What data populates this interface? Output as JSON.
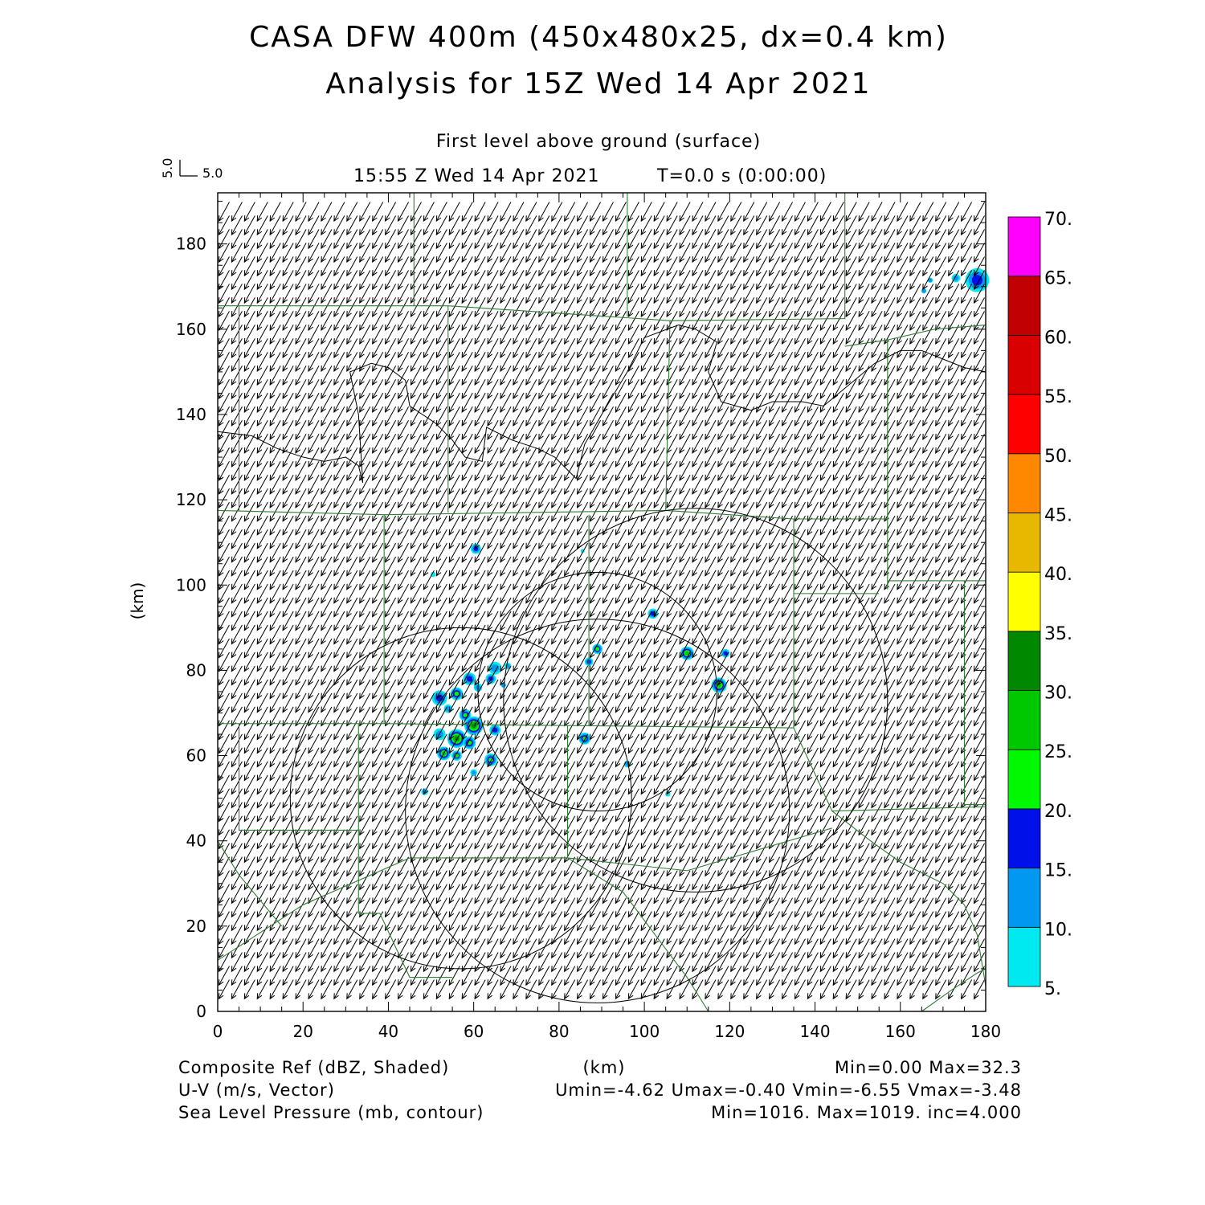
{
  "header": {
    "title_line1": "CASA DFW 400m (450x480x25, dx=0.4 km)",
    "title_line2": "Analysis for 15Z Wed 14 Apr 2021",
    "level": "First level above ground (surface)",
    "time": "15:55 Z Wed 14 Apr 2021",
    "tstep": "T=0.0 s (0:00:00)",
    "ref_vec_u": "5.0",
    "ref_vec_v": "5.0"
  },
  "chart_data": {
    "type": "heatmap",
    "xlabel": "(km)",
    "ylabel": "(km)",
    "xlim": [
      0,
      180
    ],
    "ylim": [
      0,
      192
    ],
    "xticks": [
      0,
      20,
      40,
      60,
      80,
      100,
      120,
      140,
      160,
      180
    ],
    "yticks": [
      0,
      20,
      40,
      60,
      80,
      100,
      120,
      140,
      160,
      180
    ],
    "colorbar": {
      "levels": [
        "5.",
        "10.",
        "15.",
        "20.",
        "25.",
        "30.",
        "35.",
        "40.",
        "45.",
        "50.",
        "55.",
        "60.",
        "65.",
        "70."
      ],
      "colors": [
        "#00e8f0",
        "#0098f0",
        "#0010e8",
        "#00f800",
        "#00c800",
        "#008800",
        "#ffff00",
        "#e8b800",
        "#ff8800",
        "#ff0000",
        "#d80000",
        "#c00000",
        "#ff00ff"
      ]
    },
    "wind": {
      "u": -3.2,
      "v": -5.8
    },
    "reflectivity_cells": [
      {
        "x": 60.5,
        "y": 108.5,
        "r": 1.2,
        "max": 15
      },
      {
        "x": 50.5,
        "y": 102.5,
        "r": 0.6,
        "max": 8
      },
      {
        "x": 85.5,
        "y": 108,
        "r": 0.4,
        "max": 8
      },
      {
        "x": 102,
        "y": 93.3,
        "r": 1.2,
        "max": 18
      },
      {
        "x": 89,
        "y": 85,
        "r": 1.2,
        "max": 22
      },
      {
        "x": 87,
        "y": 82,
        "r": 1.0,
        "max": 15
      },
      {
        "x": 110,
        "y": 84,
        "r": 1.6,
        "max": 25
      },
      {
        "x": 119,
        "y": 84,
        "r": 1.0,
        "max": 18
      },
      {
        "x": 117.5,
        "y": 76.5,
        "r": 1.8,
        "max": 25
      },
      {
        "x": 65,
        "y": 80.5,
        "r": 1.5,
        "max": 12
      },
      {
        "x": 68,
        "y": 81,
        "r": 0.8,
        "max": 10
      },
      {
        "x": 64,
        "y": 78,
        "r": 1.2,
        "max": 15
      },
      {
        "x": 59,
        "y": 78,
        "r": 1.5,
        "max": 15
      },
      {
        "x": 61,
        "y": 76,
        "r": 1.0,
        "max": 12
      },
      {
        "x": 67,
        "y": 76.5,
        "r": 0.6,
        "max": 10
      },
      {
        "x": 56,
        "y": 74.5,
        "r": 1.5,
        "max": 22
      },
      {
        "x": 52,
        "y": 73.5,
        "r": 1.8,
        "max": 15
      },
      {
        "x": 54,
        "y": 71,
        "r": 1.0,
        "max": 12
      },
      {
        "x": 58,
        "y": 69.5,
        "r": 1.4,
        "max": 20
      },
      {
        "x": 60,
        "y": 67,
        "r": 2.2,
        "max": 32
      },
      {
        "x": 56,
        "y": 64,
        "r": 2.2,
        "max": 30
      },
      {
        "x": 59,
        "y": 63,
        "r": 1.5,
        "max": 22
      },
      {
        "x": 52,
        "y": 65,
        "r": 1.4,
        "max": 12
      },
      {
        "x": 65,
        "y": 66,
        "r": 1.3,
        "max": 18
      },
      {
        "x": 53,
        "y": 60.5,
        "r": 1.6,
        "max": 25
      },
      {
        "x": 56,
        "y": 60,
        "r": 1.2,
        "max": 20
      },
      {
        "x": 64,
        "y": 59,
        "r": 1.5,
        "max": 22
      },
      {
        "x": 60,
        "y": 56,
        "r": 0.8,
        "max": 10
      },
      {
        "x": 86,
        "y": 64,
        "r": 1.4,
        "max": 22
      },
      {
        "x": 96,
        "y": 58,
        "r": 0.8,
        "max": 12
      },
      {
        "x": 48.5,
        "y": 51.5,
        "r": 0.8,
        "max": 10
      },
      {
        "x": 105.5,
        "y": 51,
        "r": 0.6,
        "max": 8
      },
      {
        "x": 178,
        "y": 171.5,
        "r": 2.8,
        "max": 17
      },
      {
        "x": 173,
        "y": 172,
        "r": 1.0,
        "max": 12
      },
      {
        "x": 167,
        "y": 171.5,
        "r": 0.6,
        "max": 10
      },
      {
        "x": 165.5,
        "y": 169,
        "r": 0.6,
        "max": 10
      }
    ],
    "pressure_contours": [
      {
        "cx": 89,
        "cy": 47,
        "r": 45
      },
      {
        "cx": 89,
        "cy": 75,
        "r": 28
      },
      {
        "cx": 57,
        "cy": 50,
        "r": 40
      },
      {
        "cx": 112,
        "cy": 73,
        "r": 45
      }
    ]
  },
  "footer": {
    "left1": "Composite Ref (dBZ, Shaded)",
    "left2": "U-V (m/s, Vector)",
    "left3": "Sea Level Pressure (mb, contour)",
    "xunit": "(km)",
    "right1": "Min=0.00 Max=32.3",
    "right2": "Umin=-4.62 Umax=-0.40 Vmin=-6.55 Vmax=-3.48",
    "right3": "Min=1016. Max=1019. inc=4.000"
  }
}
